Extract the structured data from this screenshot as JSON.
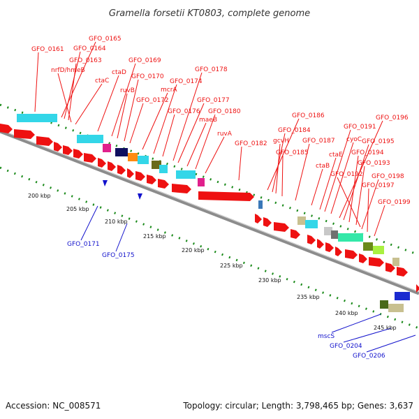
{
  "title": "Gramella forsetii KT0803, complete genome",
  "footer": {
    "accession": "Accession: NC_008571",
    "summary": "Topology: circular; Length: 3,798,465 bp; Genes: 3,637"
  },
  "colors": {
    "gene_fwd": "#ee1111",
    "label_fwd": "#ee1111",
    "label_rev": "#1111cc",
    "backbone": "#8c8c8c",
    "tick_green": "#1a8a1a"
  },
  "scale_labels": [
    "200 kbp",
    "205 kbp",
    "210 kbp",
    "215 kbp",
    "220 kbp",
    "225 kbp",
    "230 kbp",
    "235 kbp",
    "240 kbp",
    "245 kbp"
  ],
  "labels_fwd": [
    "GFO_0161",
    "GFO_0165",
    "GFO_0164",
    "GFO_0163",
    "nrfD/hmeB",
    "ctaC",
    "ctaD",
    "GFO_0169",
    "ruvB",
    "GFO_0170",
    "GFO_0172",
    "mcrA",
    "GFO_0174",
    "GFO_0176",
    "GFO_0178",
    "GFO_0177",
    "maeB",
    "GFO_0180",
    "ruvA",
    "GFO_0182",
    "GFO_0186",
    "GFO_0184",
    "gcvH",
    "GFO_0185",
    "GFO_0187",
    "ctaB",
    "ctaE",
    "GFO_0191",
    "cyoC",
    "GFO_0196",
    "GFO_0195",
    "GFO_0194",
    "GFO_0193",
    "GFO_0192",
    "GFO_0198",
    "GFO_0197",
    "GFO_0199"
  ],
  "labels_rev": [
    "GFO_0171",
    "GFO_0175",
    "mscS",
    "GFO_0204",
    "GFO_0206"
  ]
}
